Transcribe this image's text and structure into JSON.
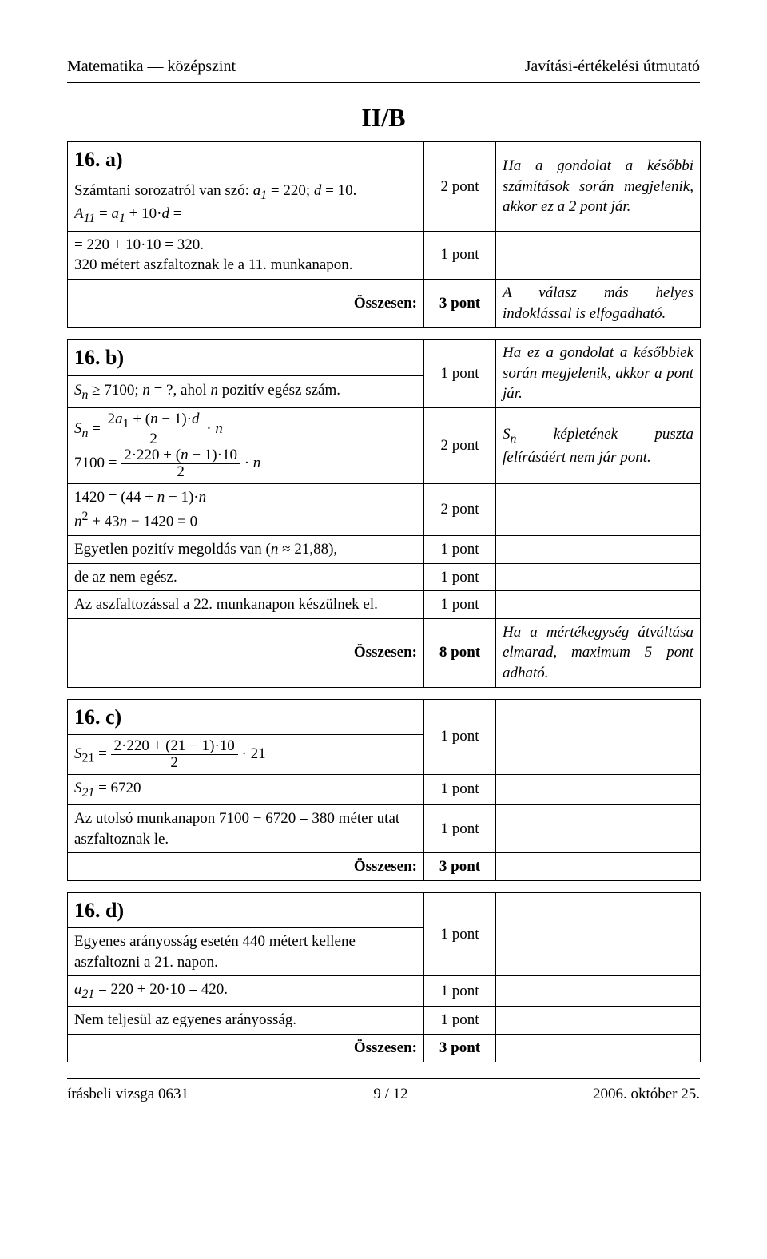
{
  "header": {
    "left": "Matematika — középszint",
    "right": "Javítási-értékelési útmutató"
  },
  "section_heading": "II/B",
  "p16a": {
    "title": "16. a)",
    "rows": [
      {
        "left_html": "Számtani sorozatról van szó: <i>a<sub>1</sub></i> = 220; <i>d</i> = 10.<br><i>A<sub>11</sub></i> = <i>a<sub>1</sub></i> + 10·<i>d</i> =",
        "points": "2 pont",
        "note_html": "Ha a gondolat a későbbi számítások során meg­jelenik, akkor ez a 2 pont jár."
      },
      {
        "left_html": "= 220 + 10·10 = 320.<br>320 métert aszfaltoznak le a 11. munkanapon.",
        "points": "1 pont",
        "note_html": ""
      },
      {
        "left_html": "<div class='right'><b>Összesen:</b></div>",
        "points": "<b>3 pont</b>",
        "note_html": "A válasz más helyes indoklással is elfo­gadható."
      }
    ]
  },
  "p16b": {
    "title": "16. b)",
    "rows": [
      {
        "left_html": "<i>S<sub>n</sub></i> ≥ 7100; <i>n</i> = ?, ahol <i>n</i> pozitív egész szám.",
        "points": "1 pont",
        "note_html": "Ha ez a gondolat a későbbiek során meg­jelenik, akkor a pont jár."
      },
      {
        "left_html": "<i>S<sub>n</sub></i> = <span class='frac'><span class='num'>2<i>a</i><sub>1</sub> + (<i>n</i> − 1)·<i>d</i></span><span class='den'>2</span></span> · <i>n</i><br>7100 = <span class='frac'><span class='num'>2·220 + (<i>n</i> − 1)·10</span><span class='den'>2</span></span> · <i>n</i>",
        "points": "2 pont",
        "note_html": "S<sub>n</sub> képletének puszta felírásáért nem jár pont."
      },
      {
        "left_html": "1420 = (44 + <i>n</i> − 1)·<i>n</i><br><i>n</i><sup>2</sup> + 43<i>n</i> − 1420 = 0",
        "points": "2 pont",
        "note_html": ""
      },
      {
        "left_html": "Egyetlen pozitív megoldás van (<i>n</i> ≈ 21,88),",
        "points": "1 pont",
        "note_html": ""
      },
      {
        "left_html": "de az nem egész.",
        "points": "1 pont",
        "note_html": ""
      },
      {
        "left_html": "Az aszfaltozással a 22. munkanapon készülnek el.",
        "points": "1 pont",
        "note_html": ""
      },
      {
        "left_html": "<div class='right'><b>Összesen:</b></div>",
        "points": "<b>8 pont</b>",
        "note_html": "Ha a mértékegység átvál­tása elmarad, maximum 5 pont adható."
      }
    ]
  },
  "p16c": {
    "title": "16. c)",
    "rows": [
      {
        "left_html": "<i>S</i><sub>21</sub> = <span class='frac'><span class='num'>2·220 + (21 − 1)·10</span><span class='den'>2</span></span> · 21",
        "points": "1 pont",
        "note_html": ""
      },
      {
        "left_html": "<i>S<sub>21</sub></i> = 6720",
        "points": "1 pont",
        "note_html": ""
      },
      {
        "left_html": "Az utolsó munkanapon 7100 − 6720 = 380 méter utat aszfaltoznak le.",
        "points": "1 pont",
        "note_html": ""
      },
      {
        "left_html": "<div class='right'><b>Összesen:</b></div>",
        "points": "<b>3 pont</b>",
        "note_html": ""
      }
    ]
  },
  "p16d": {
    "title": "16. d)",
    "rows": [
      {
        "left_html": "Egyenes arányosság esetén 440 métert kellene aszfaltozni a 21. napon.",
        "points": "1 pont",
        "note_html": ""
      },
      {
        "left_html": "<i>a<sub>21</sub></i> = 220 + 20·10 = 420.",
        "points": "1 pont",
        "note_html": ""
      },
      {
        "left_html": "Nem teljesül az egyenes arányosság.",
        "points": "1 pont",
        "note_html": ""
      },
      {
        "left_html": "<div class='right'><b>Összesen:</b></div>",
        "points": "<b>3 pont</b>",
        "note_html": ""
      }
    ]
  },
  "footer": {
    "left": "írásbeli vizsga 0631",
    "center": "9 / 12",
    "right": "2006. október 25."
  }
}
